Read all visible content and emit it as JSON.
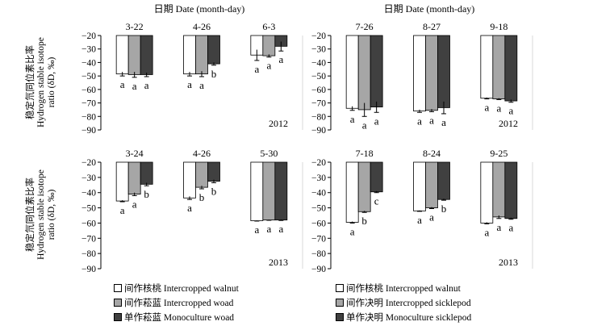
{
  "colors": {
    "walnut": "#ffffff",
    "woad": "#a6a6a6",
    "mono": "#404040"
  },
  "figure": {
    "date_axis_title": "日期 Date (month-day)",
    "y_title_cn": "稳定氘同位素比率",
    "y_title_en_1": "Hydrogen stable isotope",
    "y_title_en_2": "ratio (δD, ‰)"
  },
  "legend_left": [
    {
      "label": "间作核桃 Intercropped walnut",
      "color": "#ffffff"
    },
    {
      "label": "间作菘蓝 Intercropped woad",
      "color": "#a6a6a6"
    },
    {
      "label": "单作菘蓝 Monoculture woad",
      "color": "#404040"
    }
  ],
  "legend_right": [
    {
      "label": "间作核桃 Intercropped walnut",
      "color": "#ffffff"
    },
    {
      "label": "间作决明 Intercropped sicklepod",
      "color": "#a6a6a6"
    },
    {
      "label": "单作决明 Monoculture sicklepod",
      "color": "#404040"
    }
  ],
  "chart_data": [
    {
      "type": "bar",
      "year_label": "2012",
      "ylim": [
        -90,
        -20
      ],
      "yticks": [
        -20,
        -30,
        -40,
        -50,
        -60,
        -70,
        -80,
        -90
      ],
      "categories": [
        "3-22",
        "4-26",
        "6-3"
      ],
      "series": [
        {
          "name": "间作核桃 Intercropped walnut",
          "values": [
            -48.5,
            -48.5,
            -34.5
          ],
          "errors": [
            1.5,
            1.5,
            4.0
          ]
        },
        {
          "name": "间作菘蓝 Intercropped woad",
          "values": [
            -49,
            -48.5,
            -35
          ],
          "errors": [
            2.0,
            2.0,
            1.0
          ]
        },
        {
          "name": "单作菘蓝 Monoculture woad",
          "values": [
            -49,
            -41,
            -28
          ],
          "errors": [
            1.5,
            1.0,
            3.5
          ]
        }
      ],
      "letters": [
        [
          "a",
          "a",
          "a"
        ],
        [
          "a",
          "a",
          "b"
        ],
        [
          "a",
          "a",
          "a"
        ]
      ]
    },
    {
      "type": "bar",
      "year_label": "2012",
      "ylim": [
        -90,
        -20
      ],
      "yticks": [
        -20,
        -30,
        -40,
        -50,
        -60,
        -70,
        -80,
        -90
      ],
      "categories": [
        "7-26",
        "8-27",
        "9-18"
      ],
      "series": [
        {
          "name": "间作核桃 Intercropped walnut",
          "values": [
            -74,
            -76,
            -66.5
          ],
          "errors": [
            1.5,
            1.0,
            0.5
          ]
        },
        {
          "name": "间作决明 Intercropped sicklepod",
          "values": [
            -75,
            -75.5,
            -67
          ],
          "errors": [
            5.0,
            1.0,
            0.5
          ]
        },
        {
          "name": "单作决明 Monoculture sicklepod",
          "values": [
            -73,
            -73.5,
            -68.5
          ],
          "errors": [
            4.0,
            4.5,
            1.0
          ]
        }
      ],
      "letters": [
        [
          "a",
          "a",
          "a"
        ],
        [
          "a",
          "a",
          "a"
        ],
        [
          "a",
          "a",
          "a"
        ]
      ]
    },
    {
      "type": "bar",
      "year_label": "2013",
      "ylim": [
        -90,
        -20
      ],
      "yticks": [
        -20,
        -30,
        -40,
        -50,
        -60,
        -70,
        -80,
        -90
      ],
      "categories": [
        "3-24",
        "4-26",
        "5-30"
      ],
      "series": [
        {
          "name": "间作核桃 Intercropped walnut",
          "values": [
            -45.5,
            -43.5,
            -58.5
          ],
          "errors": [
            0.5,
            1.0,
            0.2
          ]
        },
        {
          "name": "间作菘蓝 Intercropped woad",
          "values": [
            -41,
            -36.5,
            -58
          ],
          "errors": [
            1.0,
            1.0,
            0.2
          ]
        },
        {
          "name": "单作菘蓝 Monoculture woad",
          "values": [
            -34.5,
            -32.5,
            -58
          ],
          "errors": [
            1.0,
            1.0,
            0.3
          ]
        }
      ],
      "letters": [
        [
          "a",
          "a",
          "b"
        ],
        [
          "a",
          "b",
          "b"
        ],
        [
          "a",
          "a",
          "a"
        ]
      ]
    },
    {
      "type": "bar",
      "year_label": "2013",
      "ylim": [
        -90,
        -20
      ],
      "yticks": [
        -20,
        -30,
        -40,
        -50,
        -60,
        -70,
        -80,
        -90
      ],
      "categories": [
        "7-18",
        "8-24",
        "9-25"
      ],
      "series": [
        {
          "name": "间作核桃 Intercropped walnut",
          "values": [
            -59.5,
            -52,
            -60
          ],
          "errors": [
            0.5,
            0.3,
            0.5
          ]
        },
        {
          "name": "间作决明 Intercropped sicklepod",
          "values": [
            -52.5,
            -50,
            -56
          ],
          "errors": [
            0.5,
            0.5,
            1.0
          ]
        },
        {
          "name": "单作决明 Monoculture sicklepod",
          "values": [
            -39.5,
            -44.5,
            -57
          ],
          "errors": [
            0.5,
            0.5,
            0.5
          ]
        }
      ],
      "letters": [
        [
          "a",
          "b",
          "c"
        ],
        [
          "a",
          "a",
          "b"
        ],
        [
          "a",
          "a",
          "a"
        ]
      ]
    }
  ]
}
